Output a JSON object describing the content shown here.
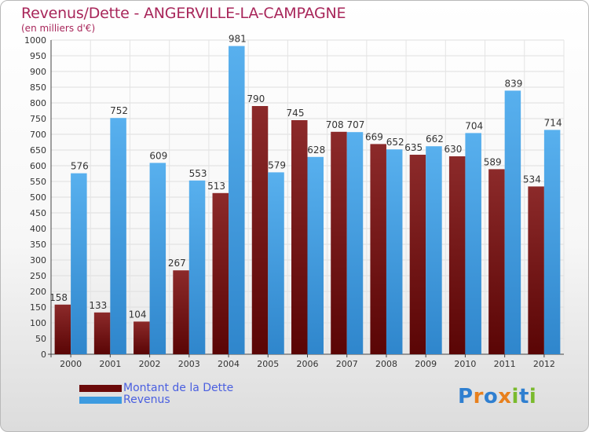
{
  "header": {
    "title": "Revenus/Dette - ANGERVILLE-LA-CAMPAGNE",
    "subtitle": "(en milliers d'€)"
  },
  "legend": {
    "items": [
      {
        "label": "Montant de la Dette",
        "color": "#6b0a0a"
      },
      {
        "label": "Revenus",
        "color": "#3d9be0"
      }
    ]
  },
  "logo": {
    "text": "Proxiti",
    "letters": [
      "P",
      "r",
      "o",
      "x",
      "i",
      "t",
      "i"
    ],
    "colors": [
      "#2f7fd0",
      "#e8801d",
      "#2f7fd0",
      "#e8801d",
      "#7aba2d",
      "#2f7fd0",
      "#7aba2d"
    ]
  },
  "chart_data": {
    "type": "bar",
    "title": "Revenus/Dette - ANGERVILLE-LA-CAMPAGNE",
    "subtitle": "(en milliers d'€)",
    "xlabel": "",
    "ylabel": "",
    "ylim": [
      0,
      1000
    ],
    "yticks": [
      0,
      50,
      100,
      150,
      200,
      250,
      300,
      350,
      400,
      450,
      500,
      550,
      600,
      650,
      700,
      750,
      800,
      850,
      900,
      950,
      1000
    ],
    "grid": true,
    "legend_position": "bottom-left",
    "categories": [
      "2000",
      "2001",
      "2002",
      "2003",
      "2004",
      "2005",
      "2006",
      "2007",
      "2008",
      "2009",
      "2010",
      "2011",
      "2012"
    ],
    "series": [
      {
        "name": "Montant de la Dette",
        "color": "#6b0a0a",
        "values": [
          158,
          133,
          104,
          267,
          513,
          790,
          745,
          708,
          669,
          635,
          630,
          589,
          534
        ]
      },
      {
        "name": "Revenus",
        "color": "#3d9be0",
        "values": [
          576,
          752,
          609,
          553,
          981,
          579,
          628,
          707,
          652,
          662,
          704,
          839,
          714
        ]
      }
    ]
  }
}
